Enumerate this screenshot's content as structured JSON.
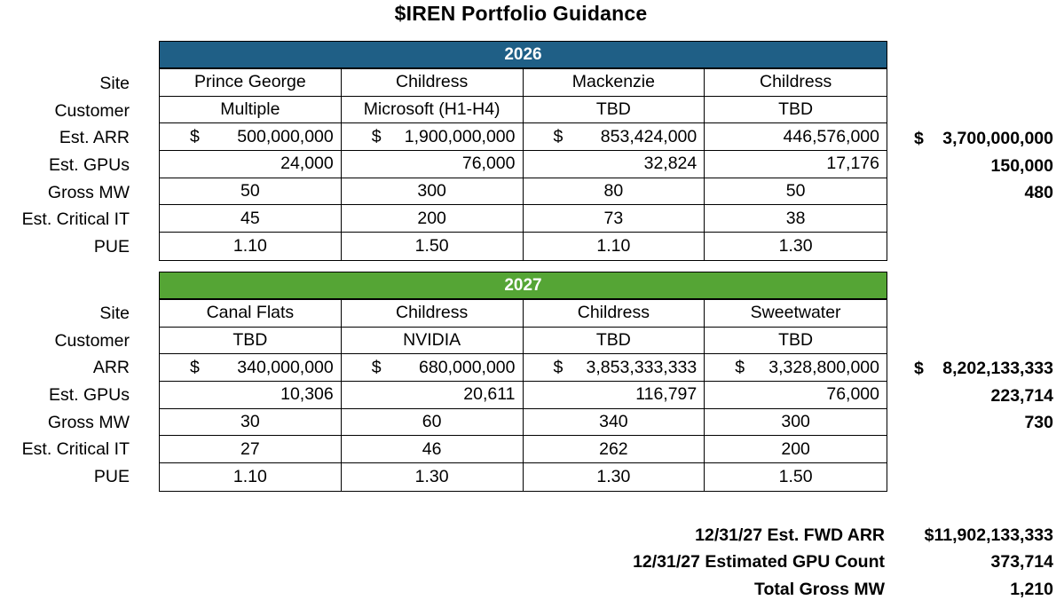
{
  "title": "$IREN Portfolio Guidance",
  "labels_2026": [
    "Site",
    "Customer",
    "Est. ARR",
    "Est. GPUs",
    "Gross MW",
    "Est. Critical IT",
    "PUE"
  ],
  "labels_2027": [
    "Site",
    "Customer",
    "ARR",
    "Est. GPUs",
    "Gross MW",
    "Est. Critical IT",
    "PUE"
  ],
  "y2026": {
    "year": "2026",
    "site": [
      "Prince George",
      "Childress",
      "Mackenzie",
      "Childress"
    ],
    "customer": [
      "Multiple",
      "Microsoft (H1-H4)",
      "TBD",
      "TBD"
    ],
    "arr_currency": [
      "$",
      "$",
      "$",
      ""
    ],
    "arr": [
      "500,000,000",
      "1,900,000,000",
      "853,424,000",
      "446,576,000"
    ],
    "gpus": [
      "24,000",
      "76,000",
      "32,824",
      "17,176"
    ],
    "gross_mw": [
      "50",
      "300",
      "80",
      "50"
    ],
    "critical_it": [
      "45",
      "200",
      "73",
      "38"
    ],
    "pue": [
      "1.10",
      "1.50",
      "1.10",
      "1.30"
    ],
    "total_arr_currency": "$",
    "total_arr": "3,700,000,000",
    "total_gpus": "150,000",
    "total_mw": "480"
  },
  "y2027": {
    "year": "2027",
    "site": [
      "Canal Flats",
      "Childress",
      "Childress",
      "Sweetwater"
    ],
    "customer": [
      "TBD",
      "NVIDIA",
      "TBD",
      "TBD"
    ],
    "arr_currency": [
      "$",
      "$",
      "$",
      "$"
    ],
    "arr": [
      "340,000,000",
      "680,000,000",
      "3,853,333,333",
      "3,328,800,000"
    ],
    "gpus": [
      "10,306",
      "20,611",
      "116,797",
      "76,000"
    ],
    "gross_mw": [
      "30",
      "60",
      "340",
      "300"
    ],
    "critical_it": [
      "27",
      "46",
      "262",
      "200"
    ],
    "pue": [
      "1.10",
      "1.30",
      "1.30",
      "1.50"
    ],
    "total_arr_currency": "$",
    "total_arr": "8,202,133,333",
    "total_gpus": "223,714",
    "total_mw": "730"
  },
  "summary": {
    "fwd_arr_label": "12/31/27  Est. FWD ARR",
    "fwd_arr": "$11,902,133,333",
    "gpu_count_label": "12/31/27 Estimated GPU Count",
    "gpu_count": "373,714",
    "gross_mw_label": "Total Gross MW",
    "gross_mw": "1,210"
  }
}
